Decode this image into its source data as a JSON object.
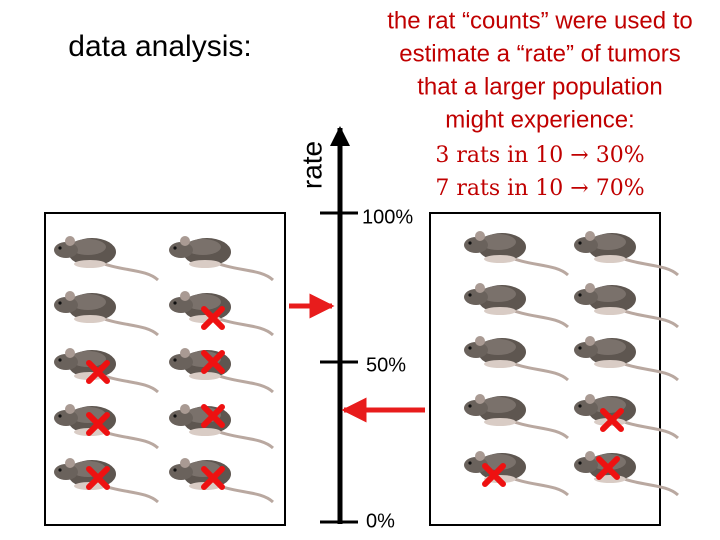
{
  "title": "data analysis:",
  "axis": {
    "label": "rate",
    "ticks": [
      "100%",
      "50%",
      "0%"
    ]
  },
  "note": {
    "lines": [
      "the rat “counts” were used to",
      "estimate a “rate” of tumors",
      "that a larger population",
      "might experience:",
      "3 rats in 10 → 30%",
      "7 rats in 10 → 70%"
    ]
  }
}
